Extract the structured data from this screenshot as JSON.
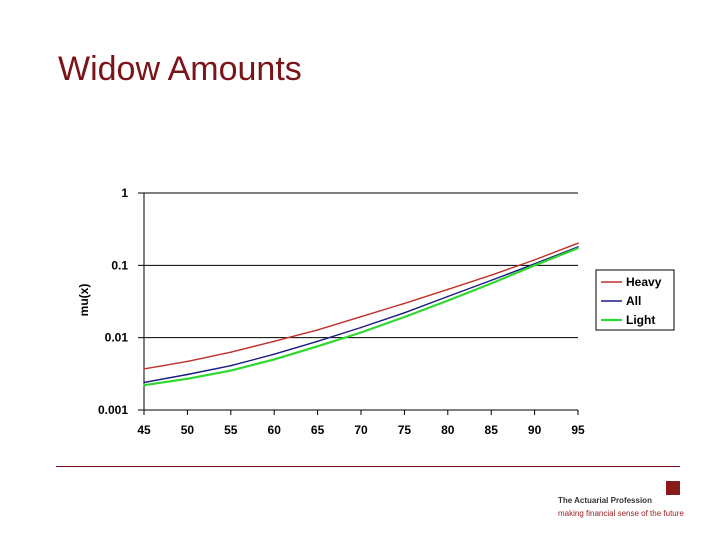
{
  "slide": {
    "title": "Widow Amounts"
  },
  "footer": {
    "logo_name": "The Actuarial Profession",
    "logo_tagline": "making financial sense of the future",
    "logo_mark": "brand-square-icon"
  },
  "chart_data": {
    "type": "line",
    "title": "",
    "xlabel": "",
    "ylabel": "mu(x)",
    "yscale": "log",
    "xlim": [
      45,
      95
    ],
    "ylim": [
      0.001,
      1
    ],
    "x_ticks": [
      "45",
      "50",
      "55",
      "60",
      "65",
      "70",
      "75",
      "80",
      "85",
      "90",
      "95"
    ],
    "y_ticks": [
      "0.001",
      "0.01",
      "0.1",
      "1"
    ],
    "grid": "horizontal",
    "legend_position": "right",
    "x": [
      45,
      50,
      55,
      60,
      65,
      70,
      75,
      80,
      85,
      90,
      95
    ],
    "series": [
      {
        "name": "Heavy",
        "color": "#c0302a",
        "values": [
          0.0037,
          0.0047,
          0.0063,
          0.0089,
          0.0128,
          0.0195,
          0.0298,
          0.0465,
          0.073,
          0.119,
          0.202
        ]
      },
      {
        "name": "All",
        "color": "#1a1a80",
        "values": [
          0.0024,
          0.0031,
          0.0041,
          0.0059,
          0.0089,
          0.0138,
          0.0221,
          0.0371,
          0.062,
          0.105,
          0.18
        ]
      },
      {
        "name": "Light",
        "color": "#2ed82e",
        "values": [
          0.0022,
          0.0027,
          0.0035,
          0.005,
          0.0076,
          0.0118,
          0.0193,
          0.0325,
          0.056,
          0.1,
          0.173
        ]
      }
    ]
  }
}
